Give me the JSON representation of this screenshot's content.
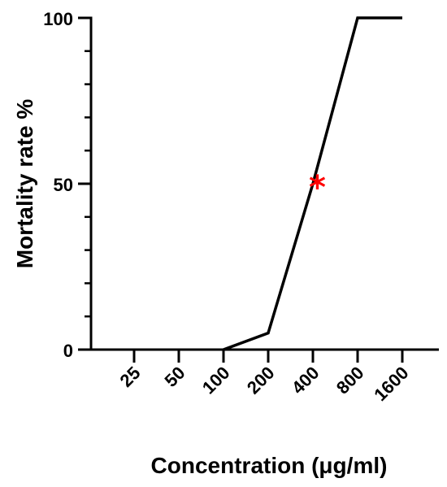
{
  "chart_data": {
    "type": "line",
    "title": "",
    "xlabel": "Concentration (μg/ml)",
    "ylabel": "Mortality rate %",
    "categories": [
      "25",
      "50",
      "100",
      "200",
      "400",
      "800",
      "1600"
    ],
    "series": [
      {
        "values": [
          null,
          null,
          0,
          5,
          50,
          100,
          100
        ]
      }
    ],
    "markers": [
      {
        "symbol": "*",
        "x_position": 4.1,
        "y": 50,
        "color": "#ff0000"
      }
    ],
    "yticks": [
      0,
      50,
      100
    ],
    "ylim": [
      0,
      100
    ],
    "grid": false,
    "line_color": "#000000"
  }
}
